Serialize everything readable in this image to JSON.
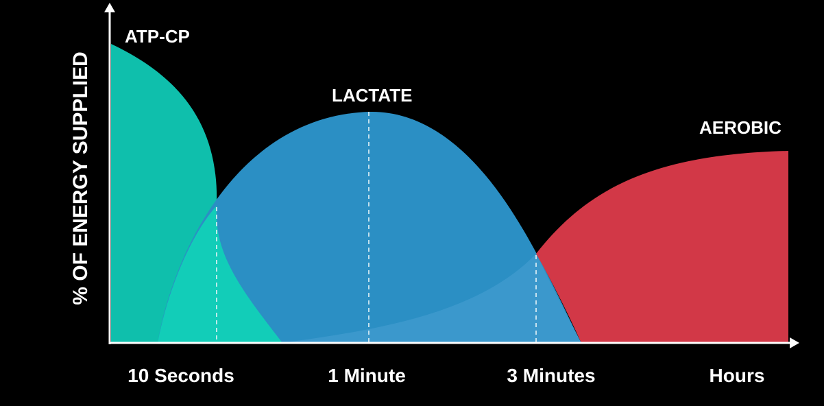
{
  "chart_data": {
    "type": "area",
    "title": "",
    "xlabel": "",
    "ylabel": "% OF ENERGY SUPPLIED",
    "categories": [
      "10 Seconds",
      "1 Minute",
      "3 Minutes",
      "Hours"
    ],
    "series": [
      {
        "name": "ATP-CP",
        "color": "#0fbfac",
        "peak_at": "start",
        "note_values": [
          {
            "x": "start",
            "y": 100
          },
          {
            "x": "10 Seconds",
            "y": 45
          },
          {
            "x": "1 Minute",
            "y": 0
          }
        ]
      },
      {
        "name": "LACTATE",
        "color": "#2b8fc4",
        "peak_at": "1 Minute",
        "note_values": [
          {
            "x": "10 Seconds",
            "y": 45
          },
          {
            "x": "1 Minute",
            "y": 77
          },
          {
            "x": "3 Minutes",
            "y": 30
          },
          {
            "x": "Hours",
            "y": 0
          }
        ]
      },
      {
        "name": "AEROBIC",
        "color": "#d23847",
        "peak_at": "Hours",
        "note_values": [
          {
            "x": "1 Minute",
            "y": 5
          },
          {
            "x": "3 Minutes",
            "y": 30
          },
          {
            "x": "Hours",
            "y": 64
          }
        ]
      }
    ],
    "grid": false,
    "legend": "none"
  }
}
